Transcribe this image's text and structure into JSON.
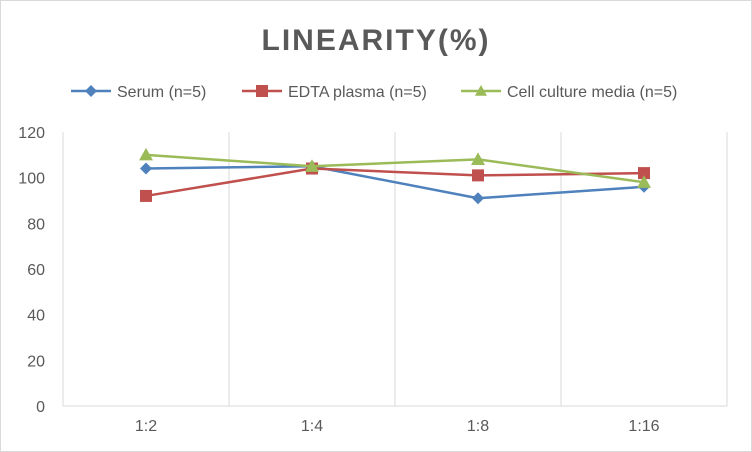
{
  "chart_data": {
    "type": "line",
    "title": "LINEARITY(%)",
    "xlabel": "",
    "ylabel": "",
    "categories": [
      "1:2",
      "1:4",
      "1:8",
      "1:16"
    ],
    "ylim": [
      0,
      120
    ],
    "yticks": [
      0,
      20,
      40,
      60,
      80,
      100,
      120
    ],
    "grid": "vertical category lines",
    "legend_position": "top",
    "series": [
      {
        "name": "Serum (n=5)",
        "values": [
          104,
          105,
          91,
          96
        ],
        "color": "#4f81bd",
        "marker": "diamond"
      },
      {
        "name": "EDTA plasma (n=5)",
        "values": [
          92,
          104,
          101,
          102
        ],
        "color": "#c0504d",
        "marker": "square"
      },
      {
        "name": "Cell culture media (n=5)",
        "values": [
          110,
          105,
          108,
          98
        ],
        "color": "#9bbb59",
        "marker": "triangle"
      }
    ]
  }
}
